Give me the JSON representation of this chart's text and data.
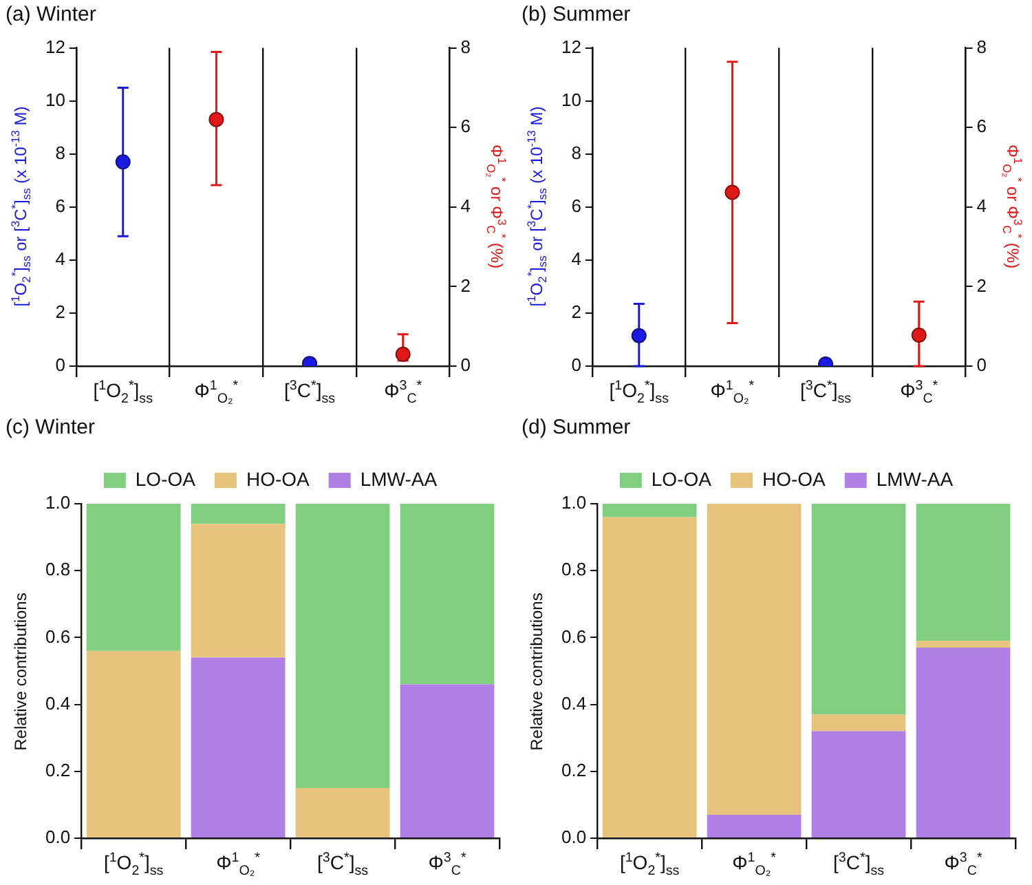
{
  "chart_data": [
    {
      "type": "scatter",
      "title": "(a) Winter",
      "ylabel": "[$^{1}$O$_{2}$$^{*}$]$_{ss}$ or [$^{3}$C$^{*}$]$_{ss}$ (x 10$^{-13}$ M)",
      "y2label": "Φ$^{1}$$_{O₂}$$^{*}$ or Φ$^{3}$$_{C}$$^{*}$ (%)",
      "categories": [
        "[$^{1}$O$_{2}$$^{*}$]$_{ss}$",
        "Φ$^{1}$$_{O₂}$$^{*}$",
        "[$^{3}$C$^{*}$]$_{ss}$",
        "Φ$^{3}$$_{C}$$^{*}$"
      ],
      "series": [
        {
          "color": "#1a1ae0",
          "values": [
            7.7,
            null,
            0.1,
            null
          ],
          "errors": [
            [
              4.9,
              10.5
            ],
            null,
            null,
            null
          ]
        },
        {
          "color": "#e01818",
          "axis": "y2",
          "values": [
            null,
            6.2,
            null,
            0.3
          ],
          "errors": [
            null,
            [
              4.55,
              7.9
            ],
            null,
            [
              0.14,
              0.8
            ]
          ]
        }
      ],
      "ylim": [
        0,
        12
      ],
      "yticks": [
        0,
        2,
        4,
        6,
        8,
        10,
        12
      ],
      "y2lim": [
        0,
        8
      ],
      "y2ticks": [
        0,
        2,
        4,
        6,
        8
      ],
      "grid": "x",
      "marker": "circle",
      "legend": false
    },
    {
      "type": "scatter",
      "title": "(b) Summer",
      "ylabel": "[$^{1}$O$_{2}$$^{*}$]$_{ss}$ or [$^{3}$C$^{*}$]$_{ss}$ (x 10$^{-13}$ M)",
      "y2label": "Φ$^{1}$$_{O₂}$$^{*}$ or Φ$^{3}$$_{C}$$^{*}$ (%)",
      "categories": [
        "[$^{1}$O$_{2}$$^{*}$]$_{ss}$",
        "Φ$^{1}$$_{O₂}$$^{*}$",
        "[$^{3}$C$^{*}$]$_{ss}$",
        "Φ$^{3}$$_{C}$$^{*}$"
      ],
      "series": [
        {
          "color": "#1a1ae0",
          "values": [
            1.15,
            null,
            0.08,
            null
          ],
          "errors": [
            [
              0,
              2.35
            ],
            null,
            null,
            null
          ]
        },
        {
          "color": "#e01818",
          "axis": "y2",
          "values": [
            null,
            4.37,
            null,
            0.78
          ],
          "errors": [
            null,
            [
              1.08,
              7.65
            ],
            null,
            [
              0,
              1.62
            ]
          ]
        }
      ],
      "ylim": [
        0,
        12
      ],
      "yticks": [
        0,
        2,
        4,
        6,
        8,
        10,
        12
      ],
      "y2lim": [
        0,
        8
      ],
      "y2ticks": [
        0,
        2,
        4,
        6,
        8
      ],
      "grid": "x",
      "marker": "circle",
      "legend": false
    },
    {
      "type": "bar",
      "title": "(c) Winter",
      "ylabel": "Relative contributions",
      "stacked": true,
      "categories": [
        "[$^{1}$O$_{2}$$^{*}$]$_{ss}$",
        "Φ$^{1}$$_{O₂}$$^{*}$",
        "[$^{3}$C$^{*}$]$_{ss}$",
        "Φ$^{3}$$_{C}$$^{*}$"
      ],
      "series": [
        {
          "name": "LMW-AA",
          "color": "#b07fe6",
          "values": [
            0,
            0.54,
            0,
            0.46
          ]
        },
        {
          "name": "HO-OA",
          "color": "#e6c47e",
          "values": [
            0.56,
            0.4,
            0.15,
            0
          ]
        },
        {
          "name": "LO-OA",
          "color": "#80cf80",
          "values": [
            0.44,
            0.06,
            0.85,
            0.54
          ]
        }
      ],
      "ylim": [
        0,
        1
      ],
      "yticks": [
        {
          "value": 0,
          "label": "0.0"
        },
        {
          "value": 0.2,
          "label": "0.2"
        },
        {
          "value": 0.4,
          "label": "0.4"
        },
        {
          "value": 0.6,
          "label": "0.6"
        },
        {
          "value": 0.8,
          "label": "0.8"
        },
        {
          "value": 1,
          "label": "1.0"
        }
      ],
      "grid": false,
      "legend": "top"
    },
    {
      "type": "bar",
      "title": "(d) Summer",
      "ylabel": "Relative contributions",
      "stacked": true,
      "categories": [
        "[$^{1}$O$_{2}$$^{*}$]$_{ss}$",
        "Φ$^{1}$$_{O₂}$$^{*}$",
        "[$^{3}$C$^{*}$]$_{ss}$",
        "Φ$^{3}$$_{C}$$^{*}$"
      ],
      "series": [
        {
          "name": "LMW-AA",
          "color": "#b07fe6",
          "values": [
            0,
            0.07,
            0.32,
            0.57
          ]
        },
        {
          "name": "HO-OA",
          "color": "#e6c47e",
          "values": [
            0.96,
            0.93,
            0.05,
            0.02
          ]
        },
        {
          "name": "LO-OA",
          "color": "#80cf80",
          "values": [
            0.04,
            0,
            0.63,
            0.41
          ]
        }
      ],
      "ylim": [
        0,
        1
      ],
      "yticks": [
        {
          "value": 0,
          "label": "0.0"
        },
        {
          "value": 0.2,
          "label": "0.2"
        },
        {
          "value": 0.4,
          "label": "0.4"
        },
        {
          "value": 0.6,
          "label": "0.6"
        },
        {
          "value": 0.8,
          "label": "0.8"
        },
        {
          "value": 1,
          "label": "1.0"
        }
      ],
      "grid": false,
      "legend": "top"
    }
  ]
}
